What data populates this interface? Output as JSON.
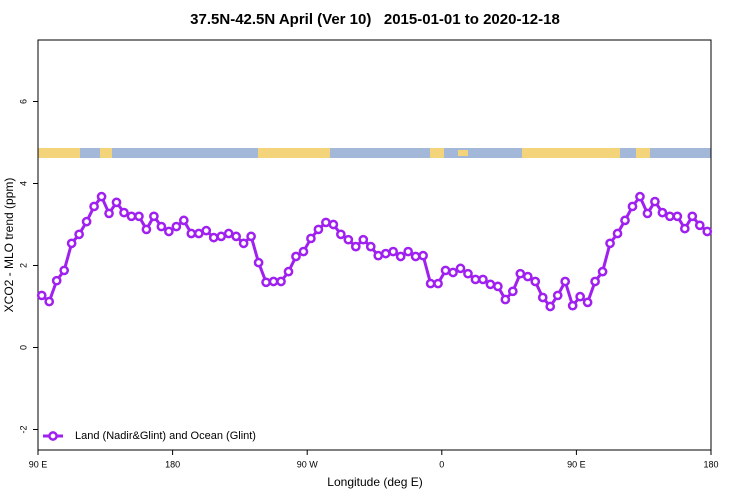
{
  "chart_data": {
    "type": "line",
    "title": "37.5N-42.5N April (Ver 10)   2015-01-01 to 2020-12-18",
    "xlabel": "Longitude (deg E)",
    "ylabel": "XCO2 - MLO trend (ppm)",
    "xlim": [
      90,
      540
    ],
    "ylim": [
      -2.5,
      7.5
    ],
    "xticks": [
      {
        "value": 90,
        "label": "90 E"
      },
      {
        "value": 180,
        "label": "180"
      },
      {
        "value": 270,
        "label": "90 W"
      },
      {
        "value": 360,
        "label": "0"
      },
      {
        "value": 450,
        "label": "90 E"
      },
      {
        "value": 540,
        "label": "180"
      }
    ],
    "yticks": [
      -2,
      0,
      2,
      4,
      6
    ],
    "legend": "bottom-left",
    "x": [
      92.5,
      97.5,
      102.5,
      107.5,
      112.5,
      117.5,
      122.5,
      127.5,
      132.5,
      137.5,
      142.5,
      147.5,
      152.5,
      157.5,
      162.5,
      167.5,
      172.5,
      177.5,
      182.5,
      187.5,
      192.5,
      197.5,
      202.5,
      207.5,
      212.5,
      217.5,
      222.5,
      227.5,
      232.5,
      237.5,
      242.5,
      247.5,
      252.5,
      257.5,
      262.5,
      267.5,
      272.5,
      277.5,
      282.5,
      287.5,
      292.5,
      297.5,
      302.5,
      307.5,
      312.5,
      317.5,
      322.5,
      327.5,
      332.5,
      337.5,
      342.5,
      347.5,
      352.5,
      357.5,
      362.5,
      367.5,
      372.5,
      377.5,
      382.5,
      387.5,
      392.5,
      397.5,
      402.5,
      407.5,
      412.5,
      417.5,
      422.5,
      427.5,
      432.5,
      437.5,
      442.5,
      447.5,
      452.5,
      457.5,
      462.5,
      467.5,
      472.5,
      477.5,
      482.5,
      487.5,
      492.5,
      497.5,
      502.5,
      507.5,
      512.5,
      517.5,
      522.5,
      527.5,
      532.5,
      537.5
    ],
    "series": [
      {
        "name": "Land (Nadir&Glint) and Ocean (Glint)",
        "color": "#a020f0",
        "values": [
          1.27,
          1.12,
          1.63,
          1.88,
          2.54,
          2.76,
          3.07,
          3.44,
          3.68,
          3.27,
          3.54,
          3.29,
          3.2,
          3.2,
          2.88,
          3.2,
          2.95,
          2.83,
          2.95,
          3.1,
          2.78,
          2.78,
          2.85,
          2.68,
          2.71,
          2.78,
          2.71,
          2.54,
          2.71,
          2.07,
          1.59,
          1.61,
          1.61,
          1.85,
          2.22,
          2.34,
          2.66,
          2.88,
          3.05,
          3.0,
          2.76,
          2.63,
          2.46,
          2.63,
          2.46,
          2.24,
          2.29,
          2.34,
          2.22,
          2.34,
          2.22,
          2.24,
          1.56,
          1.56,
          1.88,
          1.83,
          1.93,
          1.8,
          1.66,
          1.66,
          1.54,
          1.49,
          1.17,
          1.37,
          1.8,
          1.73,
          1.61,
          1.22,
          1.0,
          1.27,
          1.61,
          1.02,
          1.24,
          1.1,
          1.61,
          1.85,
          2.54,
          2.78,
          3.1,
          3.44,
          3.68,
          3.27,
          3.56,
          3.29,
          3.2,
          3.2,
          2.9,
          3.2,
          2.98,
          2.83
        ]
      }
    ]
  }
}
